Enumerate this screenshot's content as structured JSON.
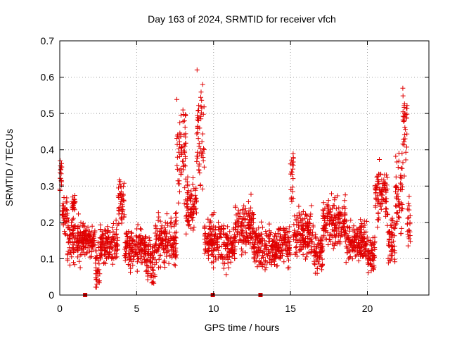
{
  "chart_data": {
    "type": "scatter",
    "title": "Day 163 of 2024, SRMTID for receiver vfch",
    "xlabel": "GPS time / hours",
    "ylabel": "SRMTID / TECUs",
    "xlim": [
      0,
      24
    ],
    "ylim": [
      0,
      0.7
    ],
    "x_ticks": [
      0,
      5,
      10,
      15,
      20
    ],
    "x_tick_labels": [
      "0",
      "5",
      "10",
      "15",
      "20"
    ],
    "y_ticks": [
      0,
      0.1,
      0.2,
      0.3,
      0.4,
      0.5,
      0.6,
      0.7
    ],
    "y_tick_labels": [
      "0",
      "0.1",
      "0.2",
      "0.3",
      "0.4",
      "0.5",
      "0.6",
      "0.7"
    ],
    "grid": true,
    "marker": "plus",
    "color": "#e00000",
    "gap_markers_x": [
      1.65,
      9.95,
      13.05
    ],
    "series": [
      {
        "name": "SRMTID",
        "segments": [
          {
            "x_range": [
              0.0,
              0.15
            ],
            "base": 0.33,
            "spread": 0.04
          },
          {
            "x_range": [
              0.15,
              0.5
            ],
            "base": 0.22,
            "spread": 0.05
          },
          {
            "x_range": [
              0.5,
              1.5
            ],
            "base": 0.15,
            "spread": 0.06
          },
          {
            "x_range": [
              0.8,
              1.0
            ],
            "base": 0.25,
            "spread": 0.02
          },
          {
            "x_range": [
              1.5,
              2.3
            ],
            "base": 0.15,
            "spread": 0.04
          },
          {
            "x_range": [
              2.3,
              2.6
            ],
            "base": 0.08,
            "spread": 0.05
          },
          {
            "x_range": [
              2.6,
              3.8
            ],
            "base": 0.14,
            "spread": 0.05
          },
          {
            "x_range": [
              3.8,
              4.2
            ],
            "base": 0.25,
            "spread": 0.07
          },
          {
            "x_range": [
              4.2,
              5.6
            ],
            "base": 0.13,
            "spread": 0.05
          },
          {
            "x_range": [
              5.6,
              6.2
            ],
            "base": 0.1,
            "spread": 0.06
          },
          {
            "x_range": [
              6.2,
              7.6
            ],
            "base": 0.15,
            "spread": 0.06
          },
          {
            "x_range": [
              7.6,
              8.2
            ],
            "base": 0.4,
            "spread": 0.12
          },
          {
            "x_range": [
              8.2,
              8.9
            ],
            "base": 0.25,
            "spread": 0.06
          },
          {
            "x_range": [
              8.9,
              9.4
            ],
            "base": 0.45,
            "spread": 0.14
          },
          {
            "x_range": [
              9.4,
              10.5
            ],
            "base": 0.15,
            "spread": 0.06
          },
          {
            "x_range": [
              10.5,
              11.4
            ],
            "base": 0.13,
            "spread": 0.05
          },
          {
            "x_range": [
              11.4,
              12.6
            ],
            "base": 0.19,
            "spread": 0.06
          },
          {
            "x_range": [
              12.6,
              14.2
            ],
            "base": 0.13,
            "spread": 0.05
          },
          {
            "x_range": [
              14.2,
              15.0
            ],
            "base": 0.14,
            "spread": 0.05
          },
          {
            "x_range": [
              15.0,
              15.2
            ],
            "base": 0.34,
            "spread": 0.07
          },
          {
            "x_range": [
              15.2,
              16.5
            ],
            "base": 0.17,
            "spread": 0.06
          },
          {
            "x_range": [
              16.5,
              17.1
            ],
            "base": 0.12,
            "spread": 0.05
          },
          {
            "x_range": [
              17.1,
              18.6
            ],
            "base": 0.2,
            "spread": 0.06
          },
          {
            "x_range": [
              18.6,
              20.0
            ],
            "base": 0.15,
            "spread": 0.05
          },
          {
            "x_range": [
              20.0,
              20.5
            ],
            "base": 0.11,
            "spread": 0.05
          },
          {
            "x_range": [
              20.5,
              21.3
            ],
            "base": 0.28,
            "spread": 0.08
          },
          {
            "x_range": [
              21.3,
              21.8
            ],
            "base": 0.15,
            "spread": 0.05
          },
          {
            "x_range": [
              21.8,
              22.3
            ],
            "base": 0.27,
            "spread": 0.1
          },
          {
            "x_range": [
              22.3,
              22.6
            ],
            "base": 0.45,
            "spread": 0.1
          },
          {
            "x_range": [
              22.6,
              22.8
            ],
            "base": 0.2,
            "spread": 0.07
          }
        ]
      }
    ]
  }
}
